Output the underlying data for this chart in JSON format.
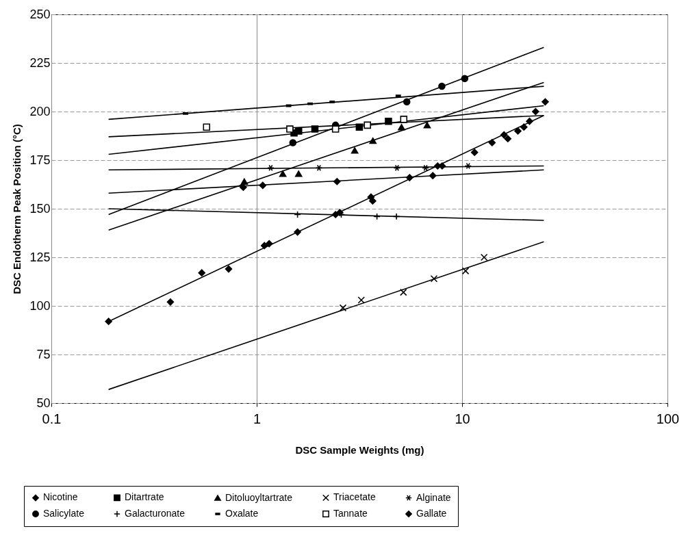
{
  "chart_data": {
    "type": "scatter",
    "xlabel": "DSC Sample Weights (mg)",
    "ylabel": "DSC Endotherm Peak Position (°C)",
    "log": "x",
    "xlim": [
      0.1,
      100
    ],
    "xticks": [
      0.1,
      1,
      10,
      100
    ],
    "ylim": [
      50,
      250
    ],
    "yticks": [
      50,
      75,
      100,
      125,
      150,
      175,
      200,
      225,
      250
    ],
    "grid": true,
    "legend": "bottom",
    "series": [
      {
        "name": "Nicotine",
        "color": "#000000",
        "marker": "diamond",
        "x": [
          0.19,
          0.38,
          0.54,
          0.73,
          1.09,
          1.15,
          1.58,
          2.42,
          2.54,
          3.6,
          3.67,
          5.55,
          7.6,
          8.0,
          11.5,
          14.0,
          16.0,
          16.7,
          18.7,
          20,
          21.3,
          22.8,
          25.4
        ],
        "values": [
          92,
          102,
          117,
          119,
          131,
          132,
          138,
          147,
          148,
          156,
          154,
          166,
          172,
          172,
          179,
          184,
          188,
          186,
          190,
          192,
          195,
          200,
          205
        ]
      },
      {
        "name": "Ditartrate",
        "color": "#000000",
        "marker": "square",
        "x": [
          1.52,
          1.6,
          1.92,
          3.16,
          4.38
        ],
        "values": [
          189,
          190,
          191,
          192,
          195
        ]
      },
      {
        "name": "Ditoluoyltartrate",
        "color": "#000000",
        "marker": "triangle",
        "x": [
          0.87,
          1.34,
          1.6,
          3.0,
          3.68,
          5.07,
          6.76
        ],
        "values": [
          164,
          168,
          168,
          180,
          185,
          192,
          193
        ]
      },
      {
        "name": "Triacetate",
        "color": "#000000",
        "marker": "x",
        "x": [
          2.63,
          3.23,
          5.18,
          7.3,
          10.4,
          12.8
        ],
        "values": [
          99,
          103,
          107,
          114,
          118,
          125
        ]
      },
      {
        "name": "Alginate",
        "color": "#000000",
        "marker": "cross",
        "x": [
          1.17,
          2.01,
          4.82,
          6.64,
          10.7
        ],
        "values": [
          171,
          171,
          171,
          171,
          172
        ]
      },
      {
        "name": "Salicylate",
        "color": "#000000",
        "marker": "circle",
        "x": [
          1.5,
          2.42,
          5.38,
          7.97,
          10.3
        ],
        "values": [
          184,
          193,
          205,
          213,
          217
        ]
      },
      {
        "name": "Galacturonate",
        "color": "#000000",
        "marker": "plus",
        "x": [
          1.58,
          2.58,
          3.85,
          4.79
        ],
        "values": [
          147,
          147,
          146,
          146
        ]
      },
      {
        "name": "Oxalate",
        "color": "#000000",
        "marker": "square",
        "x": [
          0.45,
          1.43,
          1.82,
          2.33,
          4.89
        ],
        "values": [
          199,
          203,
          204,
          205,
          208
        ]
      },
      {
        "name": "Tannate",
        "color": "#000000",
        "marker": "square",
        "x": [
          0.57,
          1.45,
          2.42,
          3.46,
          5.2
        ],
        "values": [
          192,
          191,
          191,
          193,
          196
        ]
      },
      {
        "name": "Gallate",
        "color": "#000000",
        "marker": "diamond",
        "x": [
          0.86,
          1.07,
          2.46,
          7.2
        ],
        "values": [
          161,
          162,
          164,
          167
        ]
      },
      {
        "type": "line",
        "color": "#000000",
        "x": [
          0.19,
          25
        ],
        "values": [
          92,
          198
        ]
      },
      {
        "type": "line",
        "color": "#000000",
        "x": [
          0.19,
          25
        ],
        "values": [
          178,
          203
        ]
      },
      {
        "type": "line",
        "color": "#000000",
        "x": [
          0.19,
          25
        ],
        "values": [
          139,
          215
        ]
      },
      {
        "type": "line",
        "color": "#000000",
        "x": [
          0.19,
          25
        ],
        "values": [
          57,
          133
        ]
      },
      {
        "type": "line",
        "color": "#000000",
        "x": [
          0.19,
          25
        ],
        "values": [
          170,
          172
        ]
      },
      {
        "type": "line",
        "color": "#000000",
        "x": [
          0.19,
          25
        ],
        "values": [
          147,
          233
        ]
      },
      {
        "type": "line",
        "color": "#000000",
        "x": [
          0.19,
          25
        ],
        "values": [
          150,
          144
        ]
      },
      {
        "type": "line",
        "color": "#000000",
        "x": [
          0.19,
          25
        ],
        "values": [
          196,
          213
        ]
      },
      {
        "type": "line",
        "color": "#000000",
        "x": [
          0.19,
          25
        ],
        "values": [
          187,
          198
        ]
      },
      {
        "type": "line",
        "color": "#000000",
        "x": [
          0.19,
          25
        ],
        "values": [
          158,
          170
        ]
      }
    ]
  }
}
